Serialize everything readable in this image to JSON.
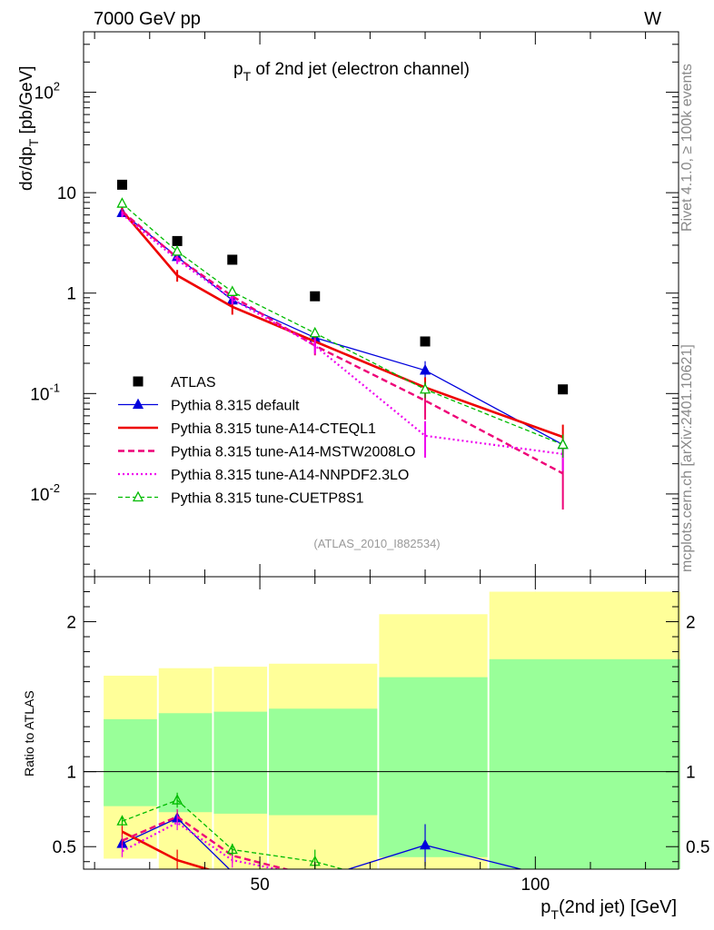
{
  "header": {
    "energy": "7000 GeV pp",
    "process": "W",
    "rivet_side": "Rivet 4.1.0, ≥ 100k events",
    "mcplots_side": "mcplots.cern.ch [arXiv:2401.10621]",
    "analysis_id": "(ATLAS_2010_I882534)"
  },
  "chart_data": [
    {
      "type": "line",
      "panel": "main",
      "title": "pT of 2nd jet (electron channel)",
      "ylabel": "dσ/dpT [pb/GeV]",
      "yscale": "log",
      "ylim": [
        0.0015,
        400
      ],
      "xlim": [
        18,
        126
      ],
      "yticks": [
        {
          "value": 0.01,
          "base": "10",
          "exp": "-2"
        },
        {
          "value": 0.1,
          "base": "10",
          "exp": "-1"
        },
        {
          "value": 1,
          "base": "1",
          "exp": ""
        },
        {
          "value": 10,
          "base": "10",
          "exp": ""
        },
        {
          "value": 100,
          "base": "10",
          "exp": "2"
        }
      ],
      "series": [
        {
          "name": "ATLAS",
          "color": "#000000",
          "style": "data",
          "points": [
            {
              "x": 25,
              "y": 12.0
            },
            {
              "x": 35,
              "y": 3.3
            },
            {
              "x": 45,
              "y": 2.15
            },
            {
              "x": 60,
              "y": 0.93
            },
            {
              "x": 80,
              "y": 0.33
            },
            {
              "x": 105,
              "y": 0.11
            }
          ]
        },
        {
          "name": "Pythia 8.315 default",
          "color": "#0000dd",
          "style": "solid-thin",
          "marker": "triangle-filled",
          "points": [
            {
              "x": 25,
              "y": 6.3,
              "err": 0.4
            },
            {
              "x": 35,
              "y": 2.3,
              "err": 0.15
            },
            {
              "x": 45,
              "y": 0.85,
              "err": 0.08
            },
            {
              "x": 60,
              "y": 0.36,
              "err": 0.04
            },
            {
              "x": 80,
              "y": 0.17,
              "err": 0.04
            },
            {
              "x": 105,
              "y": 0.031,
              "err": 0.01
            }
          ]
        },
        {
          "name": "Pythia 8.315 tune-A14-CTEQL1",
          "color": "#ee0000",
          "style": "solid-thick",
          "points": [
            {
              "x": 25,
              "y": 6.6,
              "err": 0.5
            },
            {
              "x": 35,
              "y": 1.5,
              "err": 0.2
            },
            {
              "x": 45,
              "y": 0.73,
              "err": 0.12
            },
            {
              "x": 60,
              "y": 0.33,
              "err": 0.04
            },
            {
              "x": 80,
              "y": 0.115,
              "err": 0.03
            },
            {
              "x": 105,
              "y": 0.037,
              "err": 0.012
            }
          ]
        },
        {
          "name": "Pythia 8.315 tune-A14-MSTW2008LO",
          "color": "#ee0077",
          "style": "dashed-thick",
          "points": [
            {
              "x": 25,
              "y": 6.5,
              "err": 0.4
            },
            {
              "x": 35,
              "y": 2.25,
              "err": 0.2
            },
            {
              "x": 45,
              "y": 0.93,
              "err": 0.1
            },
            {
              "x": 60,
              "y": 0.3,
              "err": 0.06
            },
            {
              "x": 80,
              "y": 0.085,
              "err": 0.03
            },
            {
              "x": 105,
              "y": 0.016,
              "err": 0.009
            }
          ]
        },
        {
          "name": "Pythia 8.315 tune-A14-NNPDF2.3LO",
          "color": "#ee00ee",
          "style": "dotted",
          "points": [
            {
              "x": 25,
              "y": 6.1,
              "err": 0.4
            },
            {
              "x": 35,
              "y": 2.15,
              "err": 0.2
            },
            {
              "x": 45,
              "y": 0.87,
              "err": 0.1
            },
            {
              "x": 60,
              "y": 0.3,
              "err": 0.05
            },
            {
              "x": 80,
              "y": 0.038,
              "err": 0.015
            },
            {
              "x": 105,
              "y": 0.025,
              "err": 0.008
            }
          ]
        },
        {
          "name": "Pythia 8.315 tune-CUETP8S1",
          "color": "#00bb00",
          "style": "dashed-thin",
          "marker": "triangle-open",
          "points": [
            {
              "x": 25,
              "y": 7.8,
              "err": 0.4
            },
            {
              "x": 35,
              "y": 2.6,
              "err": 0.15
            },
            {
              "x": 45,
              "y": 1.03,
              "err": 0.08
            },
            {
              "x": 60,
              "y": 0.4,
              "err": 0.04
            },
            {
              "x": 80,
              "y": 0.11,
              "err": 0.02
            },
            {
              "x": 105,
              "y": 0.031,
              "err": 0.008
            }
          ]
        }
      ]
    },
    {
      "type": "line",
      "panel": "ratio",
      "ylabel": "Ratio to ATLAS",
      "xlabel": "pT(2nd jet) [GeV]",
      "ylim": [
        0.35,
        2.3
      ],
      "xlim": [
        18,
        126
      ],
      "xticks": [
        50,
        100
      ],
      "yticks": [
        0.5,
        1,
        2
      ],
      "bands": [
        {
          "xlo": 20,
          "xhi": 30,
          "green": [
            0.77,
            1.35
          ],
          "yellow": [
            0.42,
            1.64
          ]
        },
        {
          "xlo": 30,
          "xhi": 40,
          "green": [
            0.73,
            1.39
          ],
          "yellow": [
            0.35,
            1.69
          ]
        },
        {
          "xlo": 40,
          "xhi": 50,
          "green": [
            0.72,
            1.4
          ],
          "yellow": [
            0.35,
            1.7
          ]
        },
        {
          "xlo": 50,
          "xhi": 70,
          "green": [
            0.71,
            1.42
          ],
          "yellow": [
            0.35,
            1.72
          ]
        },
        {
          "xlo": 70,
          "xhi": 90,
          "green": [
            0.43,
            1.63
          ],
          "yellow": [
            0.35,
            2.05
          ]
        },
        {
          "xlo": 90,
          "xhi": 125,
          "green": [
            0.35,
            1.75
          ],
          "yellow": [
            0.35,
            2.2
          ]
        }
      ],
      "series": [
        {
          "name": "Pythia 8.315 default",
          "color": "#0000dd",
          "points": [
            {
              "x": 25,
              "y": 0.52,
              "err": 0.03
            },
            {
              "x": 35,
              "y": 0.69,
              "err": 0.05
            },
            {
              "x": 45,
              "y": 0.33
            },
            {
              "x": 60,
              "y": 0.28
            },
            {
              "x": 80,
              "y": 0.51,
              "err": 0.14
            },
            {
              "x": 105,
              "y": 0.28
            }
          ]
        },
        {
          "name": "Pythia 8.315 tune-A14-CTEQL1",
          "color": "#ee0000",
          "points": [
            {
              "x": 25,
              "y": 0.6,
              "err": 0.04
            },
            {
              "x": 35,
              "y": 0.41,
              "err": 0.07
            },
            {
              "x": 45,
              "y": 0.3
            }
          ]
        },
        {
          "name": "Pythia 8.315 tune-A14-MSTW2008LO",
          "color": "#ee0077",
          "points": [
            {
              "x": 25,
              "y": 0.54,
              "err": 0.04
            },
            {
              "x": 35,
              "y": 0.7,
              "err": 0.05
            },
            {
              "x": 45,
              "y": 0.44,
              "err": 0.05
            },
            {
              "x": 60,
              "y": 0.3
            }
          ]
        },
        {
          "name": "Pythia 8.315 tune-A14-NNPDF2.3LO",
          "color": "#ee00ee",
          "points": [
            {
              "x": 25,
              "y": 0.47,
              "err": 0.04
            },
            {
              "x": 35,
              "y": 0.66,
              "err": 0.05
            },
            {
              "x": 45,
              "y": 0.41,
              "err": 0.05
            },
            {
              "x": 60,
              "y": 0.3
            }
          ]
        },
        {
          "name": "Pythia 8.315 tune-CUETP8S1",
          "color": "#00bb00",
          "points": [
            {
              "x": 25,
              "y": 0.67,
              "err": 0.03
            },
            {
              "x": 35,
              "y": 0.81,
              "err": 0.05
            },
            {
              "x": 45,
              "y": 0.48,
              "err": 0.04
            },
            {
              "x": 60,
              "y": 0.4,
              "err": 0.08
            },
            {
              "x": 70,
              "y": 0.3
            }
          ]
        }
      ]
    }
  ]
}
